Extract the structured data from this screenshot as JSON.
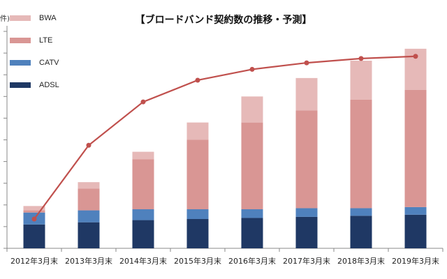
{
  "chart_data": {
    "type": "bar",
    "title": "【ブロードバンド契約数の推移・予測】",
    "unit_label": "件)",
    "categories": [
      "2012年3月末",
      "2013年3月末",
      "2014年3月末",
      "2015年3月末",
      "2016年3月末",
      "2017年3月末",
      "2018年3月末",
      "2019年3月末"
    ],
    "stacked": true,
    "series": [
      {
        "name": "ADSL",
        "color": "#1f3864",
        "values": [
          1.1,
          1.2,
          1.3,
          1.35,
          1.4,
          1.45,
          1.5,
          1.55
        ]
      },
      {
        "name": "CATV",
        "color": "#4f81bd",
        "values": [
          0.55,
          0.55,
          0.5,
          0.45,
          0.4,
          0.4,
          0.35,
          0.35
        ]
      },
      {
        "name": "LTE",
        "color": "#d99694",
        "values": [
          0.1,
          1.0,
          2.3,
          3.2,
          4.0,
          4.5,
          5.0,
          5.4
        ]
      },
      {
        "name": "BWA",
        "color": "#e6b9b8",
        "values": [
          0.2,
          0.3,
          0.35,
          0.8,
          1.2,
          1.5,
          1.8,
          1.9
        ]
      }
    ],
    "line_series": {
      "name": "",
      "color": "#c0504d",
      "values": [
        1.35,
        4.75,
        6.75,
        7.75,
        8.25,
        8.55,
        8.75,
        8.85
      ]
    },
    "ylim": [
      0,
      10
    ],
    "y_tick_step": 1,
    "legend_position": "top-left",
    "grid": false
  }
}
